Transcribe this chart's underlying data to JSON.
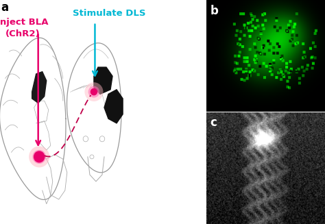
{
  "panel_a_label": "a",
  "panel_b_label": "b",
  "panel_c_label": "c",
  "inject_text_line1": "Inject BLA",
  "inject_text_line2": "(ChR2)",
  "stimulate_text": "Stimulate DLS",
  "inject_color": "#E8006A",
  "stimulate_color": "#00B8D4",
  "dashed_color": "#C0004A",
  "bg_color": "#FFFFFF",
  "label_fontsize": 12,
  "annotation_fontsize": 10,
  "fig_width": 4.74,
  "fig_height": 3.27,
  "dpi": 100
}
